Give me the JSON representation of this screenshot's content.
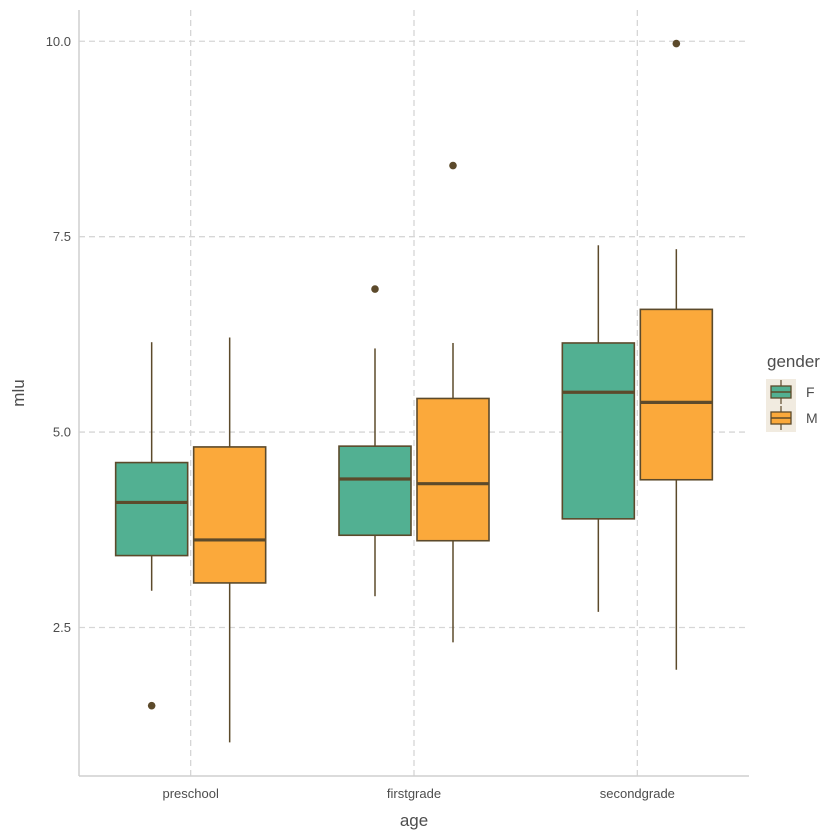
{
  "chart_data": {
    "type": "boxplot",
    "xlabel": "age",
    "ylabel": "mlu",
    "categories": [
      "preschool",
      "firstgrade",
      "secondgrade"
    ],
    "ylim": [
      0.6,
      10.4
    ],
    "yticks": [
      2.5,
      5.0,
      7.5,
      10.0
    ],
    "ytick_labels": [
      "2.5",
      "5.0",
      "7.5",
      "10.0"
    ],
    "grid": true,
    "legend": {
      "title": "gender",
      "position": "right"
    },
    "series": [
      {
        "name": "F",
        "color": "#52b092",
        "boxes": [
          {
            "min": 2.97,
            "q1": 3.42,
            "median": 4.1,
            "q3": 4.61,
            "max": 6.15,
            "outliers": [
              1.5
            ]
          },
          {
            "min": 2.9,
            "q1": 3.68,
            "median": 4.4,
            "q3": 4.82,
            "max": 6.07,
            "outliers": [
              6.83
            ]
          },
          {
            "min": 2.7,
            "q1": 3.89,
            "median": 5.51,
            "q3": 6.14,
            "max": 7.39,
            "outliers": []
          }
        ]
      },
      {
        "name": "M",
        "color": "#fba93b",
        "boxes": [
          {
            "min": 1.03,
            "q1": 3.07,
            "median": 3.62,
            "q3": 4.81,
            "max": 6.21,
            "outliers": []
          },
          {
            "min": 2.31,
            "q1": 3.61,
            "median": 4.34,
            "q3": 5.43,
            "max": 6.14,
            "outliers": [
              8.41
            ]
          },
          {
            "min": 1.96,
            "q1": 4.39,
            "median": 5.38,
            "q3": 6.57,
            "max": 7.34,
            "outliers": [
              9.97
            ]
          }
        ]
      }
    ],
    "line_color": "#5c4a2b"
  }
}
